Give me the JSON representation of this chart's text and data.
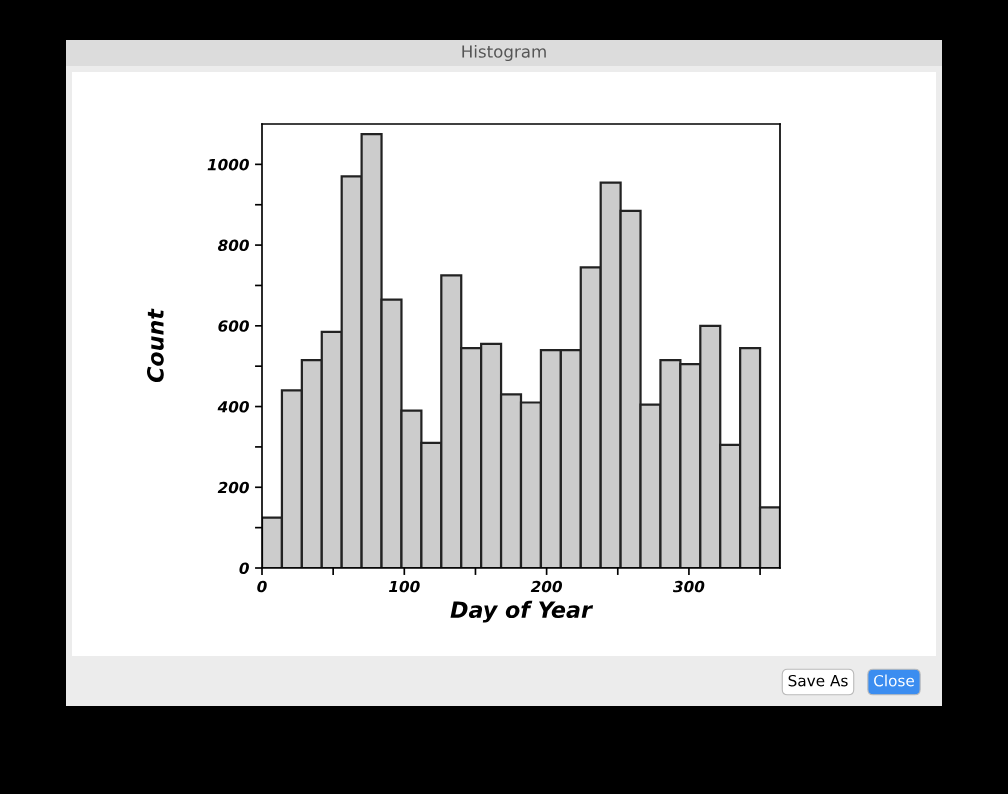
{
  "chart_data": {
    "type": "histogram",
    "title": "Histogram",
    "xlabel": "Day of Year",
    "ylabel": "Count",
    "bins": [
      0,
      14,
      28,
      42,
      56,
      70,
      84,
      98,
      112,
      126,
      140,
      154,
      168,
      182,
      196,
      210,
      224,
      238,
      252,
      266,
      280,
      294,
      308,
      322,
      336,
      350,
      364
    ],
    "values": [
      125,
      440,
      515,
      585,
      970,
      1075,
      665,
      390,
      310,
      725,
      545,
      555,
      430,
      410,
      540,
      540,
      745,
      955,
      885,
      405,
      515,
      505,
      600,
      305,
      545,
      150
    ],
    "color": "#cccccc",
    "xlim": [
      0,
      364
    ],
    "xticks": [
      0,
      {
        "value": 50,
        "label": null
      },
      100,
      {
        "value": 150,
        "label": null
      },
      200,
      {
        "value": 250,
        "label": null
      },
      300,
      {
        "value": 350,
        "label": null
      }
    ],
    "ylim": [
      0,
      1100
    ],
    "yticks": [
      0,
      {
        "value": 100,
        "label": null
      },
      200,
      {
        "value": 300,
        "label": null
      },
      400,
      {
        "value": 500,
        "label": null
      },
      600,
      {
        "value": 700,
        "label": null
      },
      800,
      {
        "value": 900,
        "label": null
      },
      1000
    ],
    "grid": false,
    "legend": false,
    "annotations": [
      "Save As",
      "Close"
    ]
  }
}
